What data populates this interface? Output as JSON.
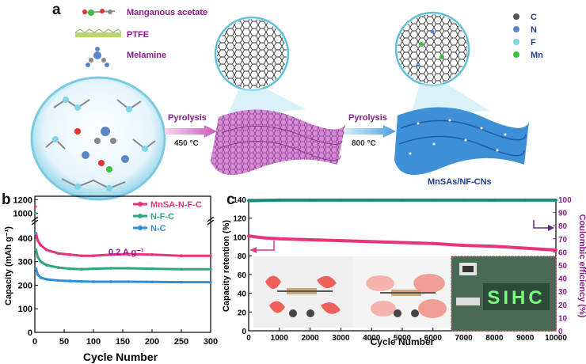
{
  "panel_a": {
    "letter": "a",
    "precursors": [
      {
        "label": "Manganous acetate",
        "icon": "molecule-icon"
      },
      {
        "label": "PTFE",
        "icon": "polymer-chain-icon"
      },
      {
        "label": "Melamine",
        "icon": "melamine-icon"
      }
    ],
    "steps": [
      {
        "label": "Pyrolysis",
        "temperature": "450 °C"
      },
      {
        "label": "Pyrolysis",
        "temperature": "800 °C"
      }
    ],
    "element_legend": [
      {
        "symbol": "C",
        "color": "#555555"
      },
      {
        "symbol": "N",
        "color": "#5a86c8"
      },
      {
        "symbol": "F",
        "color": "#7fd6e0"
      },
      {
        "symbol": "Mn",
        "color": "#3fbf3f"
      }
    ],
    "product_label": "MnSAs/NF-CNs"
  },
  "panel_b": {
    "letter": "b",
    "annotation": "0.2 A g⁻¹",
    "chart_data": {
      "type": "line",
      "xlabel": "Cycle Number",
      "ylabel": "Capacity (mAh g⁻¹)",
      "xlim": [
        0,
        300
      ],
      "xticks": [
        "0",
        "50",
        "100",
        "150",
        "200",
        "250",
        "300"
      ],
      "yticks_lower": [
        "0",
        "100",
        "200",
        "300",
        "400"
      ],
      "yticks_upper": [
        "1000",
        "1200"
      ],
      "legend_position": "top-right",
      "series": [
        {
          "name": "MnSA-N-F-C",
          "color": "#e8347a",
          "x": [
            1,
            2,
            5,
            10,
            20,
            40,
            60,
            80,
            100,
            130,
            160,
            200,
            250,
            300
          ],
          "values": [
            1100,
            420,
            390,
            370,
            350,
            335,
            330,
            325,
            325,
            330,
            332,
            330,
            325,
            325
          ]
        },
        {
          "name": "N-F-C",
          "color": "#2fa57e",
          "x": [
            1,
            2,
            5,
            10,
            20,
            40,
            60,
            80,
            100,
            130,
            160,
            200,
            250,
            300
          ],
          "values": [
            1000,
            350,
            320,
            300,
            285,
            275,
            270,
            268,
            270,
            272,
            272,
            270,
            268,
            268
          ]
        },
        {
          "name": "N-C",
          "color": "#2f8fd8",
          "x": [
            1,
            2,
            5,
            10,
            20,
            40,
            60,
            80,
            100,
            130,
            160,
            200,
            250,
            300
          ],
          "values": [
            420,
            270,
            245,
            232,
            225,
            220,
            218,
            216,
            215,
            215,
            215,
            214,
            213,
            213
          ]
        }
      ]
    }
  },
  "panel_c": {
    "letter": "c",
    "chart_data": {
      "type": "line",
      "xlabel": "Cycle Number",
      "ylabel_left": "Capacity retention (%)",
      "ylabel_right": "Coulombic efficiency (%)",
      "xlim": [
        0,
        10000
      ],
      "ylim_left": [
        0,
        140
      ],
      "ylim_right": [
        0,
        100
      ],
      "xticks": [
        "0",
        "1000",
        "2000",
        "3000",
        "4000",
        "5000",
        "6000",
        "7000",
        "8000",
        "9000",
        "10000"
      ],
      "yticks_left": [
        "0",
        "20",
        "40",
        "60",
        "80",
        "100",
        "120",
        "140"
      ],
      "yticks_right": [
        "0",
        "10",
        "20",
        "30",
        "40",
        "50",
        "60",
        "70",
        "80",
        "90",
        "100"
      ],
      "series": [
        {
          "axis": "left",
          "color": "#e8347a",
          "x": [
            0,
            500,
            1000,
            2000,
            3000,
            4000,
            5000,
            6000,
            7000,
            8000,
            9000,
            10000
          ],
          "values": [
            101,
            99,
            98,
            97,
            96,
            95,
            94,
            93,
            91,
            90,
            88,
            86
          ]
        },
        {
          "axis": "right",
          "color": "#1e8c7a",
          "x": [
            0,
            1000,
            2000,
            3000,
            4000,
            5000,
            6000,
            7000,
            8000,
            9000,
            10000
          ],
          "values": [
            99,
            99.5,
            99.5,
            99.5,
            99.5,
            99.5,
            99.5,
            99.5,
            99.5,
            99.5,
            99.5
          ]
        }
      ]
    },
    "photo_display_text": "SIHC"
  }
}
